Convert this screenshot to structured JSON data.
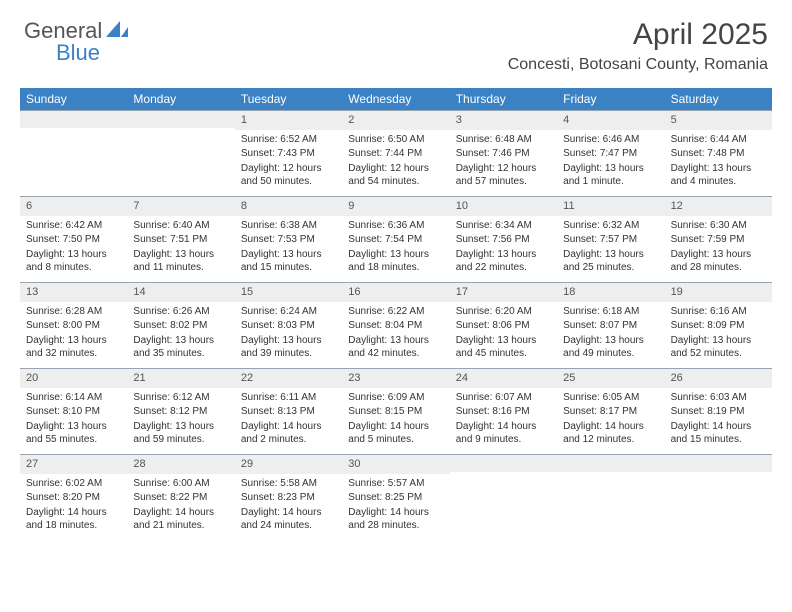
{
  "brand": {
    "text_a": "General",
    "text_b": "Blue"
  },
  "title": "April 2025",
  "location": "Concesti, Botosani County, Romania",
  "day_names": [
    "Sunday",
    "Monday",
    "Tuesday",
    "Wednesday",
    "Thursday",
    "Friday",
    "Saturday"
  ],
  "colors": {
    "header_bg": "#3b82c4",
    "header_fg": "#ffffff",
    "daynum_bg": "#eeeeee",
    "rule": "#98a4b0"
  },
  "weeks": [
    [
      {
        "n": "",
        "sunrise": "",
        "sunset": "",
        "daylight": ""
      },
      {
        "n": "",
        "sunrise": "",
        "sunset": "",
        "daylight": ""
      },
      {
        "n": "1",
        "sunrise": "Sunrise: 6:52 AM",
        "sunset": "Sunset: 7:43 PM",
        "daylight": "Daylight: 12 hours and 50 minutes."
      },
      {
        "n": "2",
        "sunrise": "Sunrise: 6:50 AM",
        "sunset": "Sunset: 7:44 PM",
        "daylight": "Daylight: 12 hours and 54 minutes."
      },
      {
        "n": "3",
        "sunrise": "Sunrise: 6:48 AM",
        "sunset": "Sunset: 7:46 PM",
        "daylight": "Daylight: 12 hours and 57 minutes."
      },
      {
        "n": "4",
        "sunrise": "Sunrise: 6:46 AM",
        "sunset": "Sunset: 7:47 PM",
        "daylight": "Daylight: 13 hours and 1 minute."
      },
      {
        "n": "5",
        "sunrise": "Sunrise: 6:44 AM",
        "sunset": "Sunset: 7:48 PM",
        "daylight": "Daylight: 13 hours and 4 minutes."
      }
    ],
    [
      {
        "n": "6",
        "sunrise": "Sunrise: 6:42 AM",
        "sunset": "Sunset: 7:50 PM",
        "daylight": "Daylight: 13 hours and 8 minutes."
      },
      {
        "n": "7",
        "sunrise": "Sunrise: 6:40 AM",
        "sunset": "Sunset: 7:51 PM",
        "daylight": "Daylight: 13 hours and 11 minutes."
      },
      {
        "n": "8",
        "sunrise": "Sunrise: 6:38 AM",
        "sunset": "Sunset: 7:53 PM",
        "daylight": "Daylight: 13 hours and 15 minutes."
      },
      {
        "n": "9",
        "sunrise": "Sunrise: 6:36 AM",
        "sunset": "Sunset: 7:54 PM",
        "daylight": "Daylight: 13 hours and 18 minutes."
      },
      {
        "n": "10",
        "sunrise": "Sunrise: 6:34 AM",
        "sunset": "Sunset: 7:56 PM",
        "daylight": "Daylight: 13 hours and 22 minutes."
      },
      {
        "n": "11",
        "sunrise": "Sunrise: 6:32 AM",
        "sunset": "Sunset: 7:57 PM",
        "daylight": "Daylight: 13 hours and 25 minutes."
      },
      {
        "n": "12",
        "sunrise": "Sunrise: 6:30 AM",
        "sunset": "Sunset: 7:59 PM",
        "daylight": "Daylight: 13 hours and 28 minutes."
      }
    ],
    [
      {
        "n": "13",
        "sunrise": "Sunrise: 6:28 AM",
        "sunset": "Sunset: 8:00 PM",
        "daylight": "Daylight: 13 hours and 32 minutes."
      },
      {
        "n": "14",
        "sunrise": "Sunrise: 6:26 AM",
        "sunset": "Sunset: 8:02 PM",
        "daylight": "Daylight: 13 hours and 35 minutes."
      },
      {
        "n": "15",
        "sunrise": "Sunrise: 6:24 AM",
        "sunset": "Sunset: 8:03 PM",
        "daylight": "Daylight: 13 hours and 39 minutes."
      },
      {
        "n": "16",
        "sunrise": "Sunrise: 6:22 AM",
        "sunset": "Sunset: 8:04 PM",
        "daylight": "Daylight: 13 hours and 42 minutes."
      },
      {
        "n": "17",
        "sunrise": "Sunrise: 6:20 AM",
        "sunset": "Sunset: 8:06 PM",
        "daylight": "Daylight: 13 hours and 45 minutes."
      },
      {
        "n": "18",
        "sunrise": "Sunrise: 6:18 AM",
        "sunset": "Sunset: 8:07 PM",
        "daylight": "Daylight: 13 hours and 49 minutes."
      },
      {
        "n": "19",
        "sunrise": "Sunrise: 6:16 AM",
        "sunset": "Sunset: 8:09 PM",
        "daylight": "Daylight: 13 hours and 52 minutes."
      }
    ],
    [
      {
        "n": "20",
        "sunrise": "Sunrise: 6:14 AM",
        "sunset": "Sunset: 8:10 PM",
        "daylight": "Daylight: 13 hours and 55 minutes."
      },
      {
        "n": "21",
        "sunrise": "Sunrise: 6:12 AM",
        "sunset": "Sunset: 8:12 PM",
        "daylight": "Daylight: 13 hours and 59 minutes."
      },
      {
        "n": "22",
        "sunrise": "Sunrise: 6:11 AM",
        "sunset": "Sunset: 8:13 PM",
        "daylight": "Daylight: 14 hours and 2 minutes."
      },
      {
        "n": "23",
        "sunrise": "Sunrise: 6:09 AM",
        "sunset": "Sunset: 8:15 PM",
        "daylight": "Daylight: 14 hours and 5 minutes."
      },
      {
        "n": "24",
        "sunrise": "Sunrise: 6:07 AM",
        "sunset": "Sunset: 8:16 PM",
        "daylight": "Daylight: 14 hours and 9 minutes."
      },
      {
        "n": "25",
        "sunrise": "Sunrise: 6:05 AM",
        "sunset": "Sunset: 8:17 PM",
        "daylight": "Daylight: 14 hours and 12 minutes."
      },
      {
        "n": "26",
        "sunrise": "Sunrise: 6:03 AM",
        "sunset": "Sunset: 8:19 PM",
        "daylight": "Daylight: 14 hours and 15 minutes."
      }
    ],
    [
      {
        "n": "27",
        "sunrise": "Sunrise: 6:02 AM",
        "sunset": "Sunset: 8:20 PM",
        "daylight": "Daylight: 14 hours and 18 minutes."
      },
      {
        "n": "28",
        "sunrise": "Sunrise: 6:00 AM",
        "sunset": "Sunset: 8:22 PM",
        "daylight": "Daylight: 14 hours and 21 minutes."
      },
      {
        "n": "29",
        "sunrise": "Sunrise: 5:58 AM",
        "sunset": "Sunset: 8:23 PM",
        "daylight": "Daylight: 14 hours and 24 minutes."
      },
      {
        "n": "30",
        "sunrise": "Sunrise: 5:57 AM",
        "sunset": "Sunset: 8:25 PM",
        "daylight": "Daylight: 14 hours and 28 minutes."
      },
      {
        "n": "",
        "sunrise": "",
        "sunset": "",
        "daylight": ""
      },
      {
        "n": "",
        "sunrise": "",
        "sunset": "",
        "daylight": ""
      },
      {
        "n": "",
        "sunrise": "",
        "sunset": "",
        "daylight": ""
      }
    ]
  ]
}
